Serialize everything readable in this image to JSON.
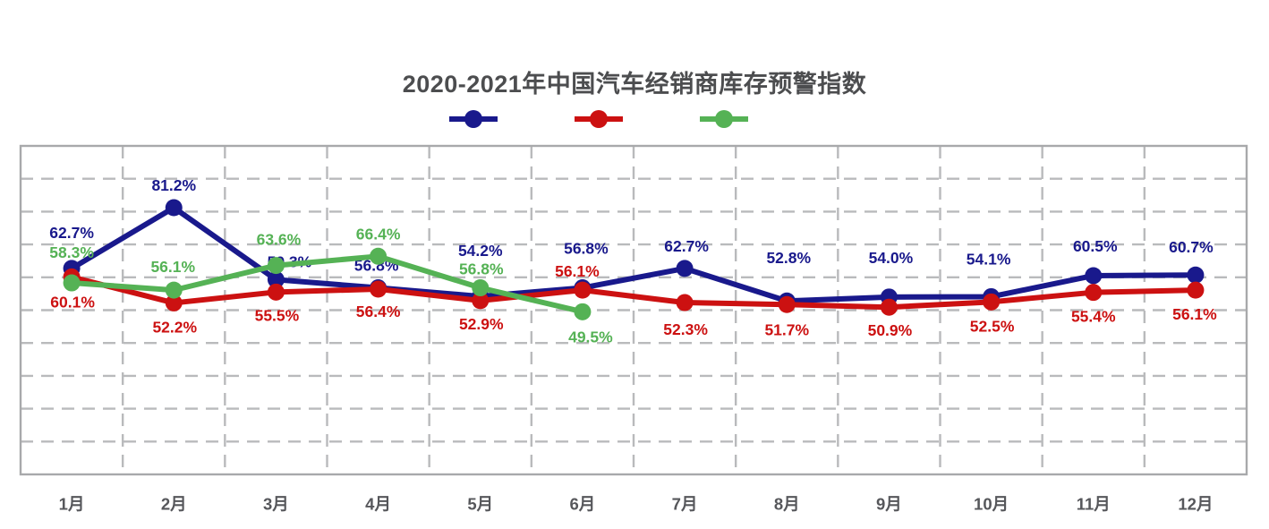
{
  "title": "2020-2021年中国汽车经销商库存预警指数",
  "legend": {
    "items": [
      {
        "name": "series-blue",
        "color": "#19198c",
        "label": ""
      },
      {
        "name": "series-red",
        "color": "#cc1111",
        "label": ""
      },
      {
        "name": "series-green",
        "color": "#55b255",
        "label": ""
      }
    ],
    "note": "legend marker symbols only; series name text is not visible in the image"
  },
  "colors": {
    "background": "#ffffff",
    "title_text": "#4c4d4f",
    "axis_text": "#56575b",
    "gridline": "#b9babc",
    "plot_border": "#a8a9ab",
    "series_blue": "#19198c",
    "series_red": "#cc1111",
    "series_green": "#55b255"
  },
  "chart_data": {
    "type": "line",
    "title": "2020-2021年中国汽车经销商库存预警指数",
    "categories": [
      "1月",
      "2月",
      "3月",
      "4月",
      "5月",
      "6月",
      "7月",
      "8月",
      "9月",
      "10月",
      "11月",
      "12月"
    ],
    "xlabel": "",
    "ylabel": "",
    "ylim": [
      0,
      100
    ],
    "y_gridline_step": 10,
    "grid": "dashed horizontal and vertical, no axis tick value labels",
    "legend_position": "top-center",
    "value_labels_format": "percent, one decimal, shown beside every point",
    "series": [
      {
        "name": "series-blue",
        "color": "#19198c",
        "values": [
          62.7,
          81.2,
          59.3,
          56.8,
          54.2,
          56.8,
          62.7,
          52.8,
          54.0,
          54.1,
          60.5,
          60.7
        ]
      },
      {
        "name": "series-red",
        "color": "#cc1111",
        "values": [
          60.1,
          52.2,
          55.5,
          56.4,
          52.9,
          56.1,
          52.3,
          51.7,
          50.9,
          52.5,
          55.4,
          56.1
        ]
      },
      {
        "name": "series-green",
        "color": "#55b255",
        "values": [
          58.3,
          56.1,
          63.6,
          66.4,
          56.8,
          49.5
        ]
      }
    ]
  }
}
